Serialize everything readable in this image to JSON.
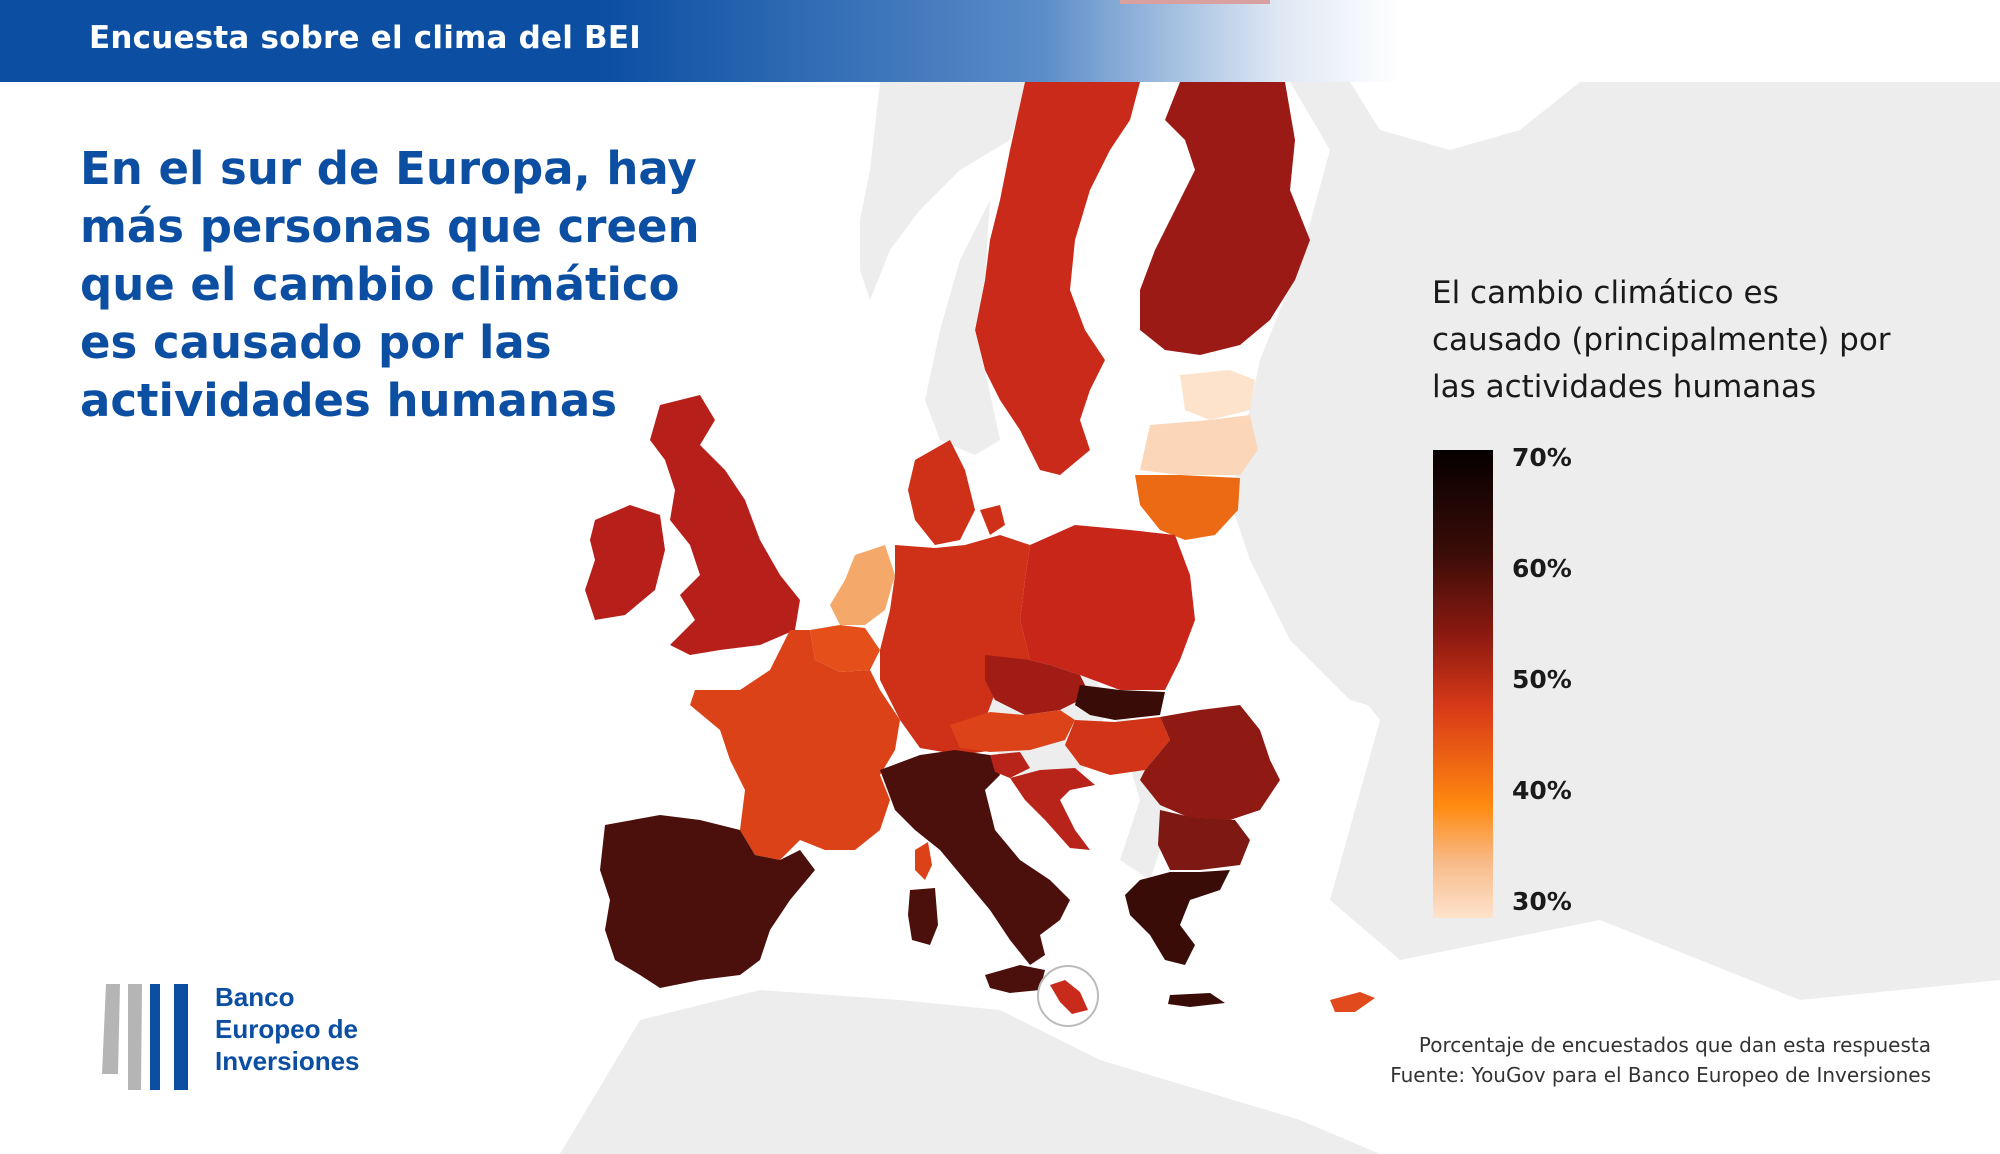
{
  "header": {
    "title": "Encuesta sobre el clima del BEI"
  },
  "headline": {
    "lines": [
      "En el sur de Europa, hay",
      "más personas que creen",
      "que el cambio climático",
      "es causado por las",
      "actividades humanas"
    ]
  },
  "legend": {
    "title_lines": [
      "El cambio climático es",
      "causado (principalmente) por",
      "las actividades humanas"
    ],
    "ticks": [
      "70%",
      "60%",
      "50%",
      "40%",
      "30%"
    ],
    "range": [
      30,
      70
    ]
  },
  "footnote": {
    "note": "Porcentaje de encuestados que dan esta respuesta",
    "source": "Fuente: YouGov para el Banco Europeo de Inversiones"
  },
  "logo": {
    "lines": [
      "Banco",
      "Europeo de",
      "Inversiones"
    ]
  },
  "colors": {
    "brand_blue": "#0b4ea2",
    "scale_dark": "#050000",
    "scale_light": "#fde3cc"
  },
  "map": {
    "regions": [
      {
        "name": "Sweden",
        "shade": "#c92a1a"
      },
      {
        "name": "Finland",
        "shade": "#9c1a16"
      },
      {
        "name": "Denmark",
        "shade": "#cf3018"
      },
      {
        "name": "Estonia",
        "shade": "#fde3cc"
      },
      {
        "name": "Latvia",
        "shade": "#fbd6b8"
      },
      {
        "name": "Lithuania",
        "shade": "#ec6a14"
      },
      {
        "name": "Ireland",
        "shade": "#b7201a"
      },
      {
        "name": "United Kingdom",
        "shade": "#b7201a"
      },
      {
        "name": "Netherlands",
        "shade": "#f4a86a"
      },
      {
        "name": "Belgium",
        "shade": "#e5501a"
      },
      {
        "name": "Germany",
        "shade": "#cf3018"
      },
      {
        "name": "Poland",
        "shade": "#c9261a"
      },
      {
        "name": "Czech Republic",
        "shade": "#a01c14"
      },
      {
        "name": "Slovakia",
        "shade": "#3a0c08"
      },
      {
        "name": "Austria",
        "shade": "#dd4318"
      },
      {
        "name": "Hungary",
        "shade": "#d23418"
      },
      {
        "name": "Romania",
        "shade": "#8f1a14"
      },
      {
        "name": "Bulgaria",
        "shade": "#7d1812"
      },
      {
        "name": "France",
        "shade": "#dc4218"
      },
      {
        "name": "Spain",
        "shade": "#4b0f0c"
      },
      {
        "name": "Italy",
        "shade": "#4b0f0c"
      },
      {
        "name": "Slovenia",
        "shade": "#b8241a"
      },
      {
        "name": "Croatia",
        "shade": "#b8241a"
      },
      {
        "name": "Greece",
        "shade": "#3a0c08"
      },
      {
        "name": "Cyprus",
        "shade": "#e14a1c"
      },
      {
        "name": "Malta",
        "shade": "#c82a1c"
      },
      {
        "name": "Corsica",
        "shade": "#dc4218"
      },
      {
        "name": "Sardinia",
        "shade": "#4b0f0c"
      }
    ]
  }
}
